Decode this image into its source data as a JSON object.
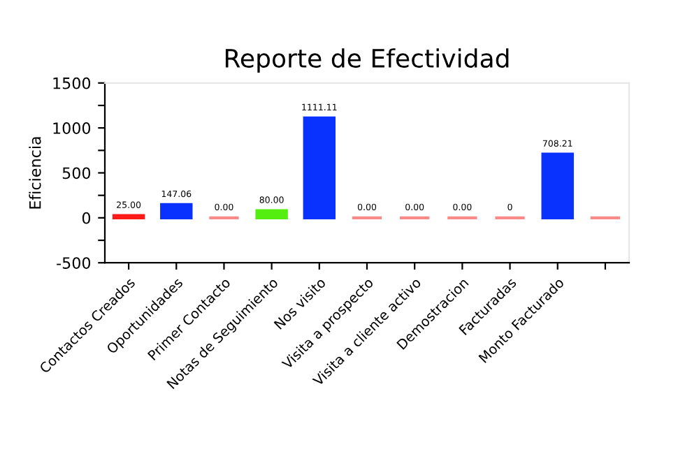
{
  "chart_data": {
    "type": "bar",
    "title": "Reporte de Efectividad",
    "ylabel": "Eficiencia",
    "categories": [
      "Contactos Creados",
      "Oportunidades",
      "Primer Contacto",
      "Notas de Seguimiento",
      "Nos visito",
      "Visita a prospecto",
      "Visita a cliente activo",
      "Demostracion",
      "Facturadas",
      "Monto Facturado",
      null
    ],
    "values": [
      25,
      147.06,
      0,
      80,
      1111.11,
      0,
      0,
      0,
      0,
      708.21,
      0
    ],
    "colors": [
      "#ff1a1a",
      "#0a32ff",
      "#f88a8a",
      "#55ee11",
      "#0a32ff",
      "#f88a8a",
      "#f88a8a",
      "#f88a8a",
      "#f88a8a",
      "#0a32ff",
      "#f88a8a"
    ],
    "value_labels": [
      "25.00",
      "147.06",
      "0.00",
      "80.00",
      "1111.11",
      "0.00",
      "0.00",
      "0.00",
      "0",
      "708.21",
      null
    ],
    "ylim": [
      -500,
      1500
    ],
    "yticks": [
      -500,
      {
        "value": -250,
        "label": null
      },
      0,
      {
        "value": 250,
        "label": null
      },
      500,
      {
        "value": 750,
        "label": null
      },
      1000,
      {
        "value": 1250,
        "label": null
      },
      1500
    ],
    "grid": false,
    "legend": false
  }
}
